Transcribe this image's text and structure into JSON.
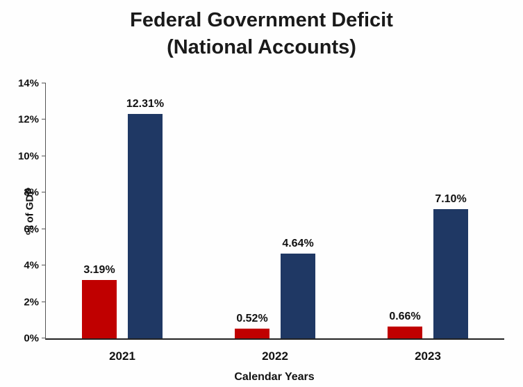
{
  "title": {
    "line1": "Federal Government Deficit",
    "line2": "(National Accounts)"
  },
  "axes": {
    "xlabel": "Calendar Years",
    "ylabel": "% of GDP"
  },
  "chart_data": {
    "type": "bar",
    "title": "Federal Government Deficit (National Accounts)",
    "xlabel": "Calendar Years",
    "ylabel": "% of GDP",
    "ylim": [
      0,
      14
    ],
    "ytick_step": 2,
    "yticks": [
      "0%",
      "2%",
      "4%",
      "6%",
      "8%",
      "10%",
      "12%",
      "14%"
    ],
    "ytick_values": [
      0,
      2,
      4,
      6,
      8,
      10,
      12,
      14
    ],
    "grid": false,
    "legend": "none",
    "categories": [
      "2021",
      "2022",
      "2023"
    ],
    "series": [
      {
        "name": "red-series",
        "color": "#C00000",
        "values": [
          3.19,
          0.52,
          0.66
        ],
        "labels": [
          "3.19%",
          "0.52%",
          "0.66%"
        ]
      },
      {
        "name": "navy-series",
        "color": "#1F3864",
        "values": [
          12.31,
          4.64,
          7.1
        ],
        "labels": [
          "12.31%",
          "4.64%",
          "7.10%"
        ]
      }
    ]
  }
}
